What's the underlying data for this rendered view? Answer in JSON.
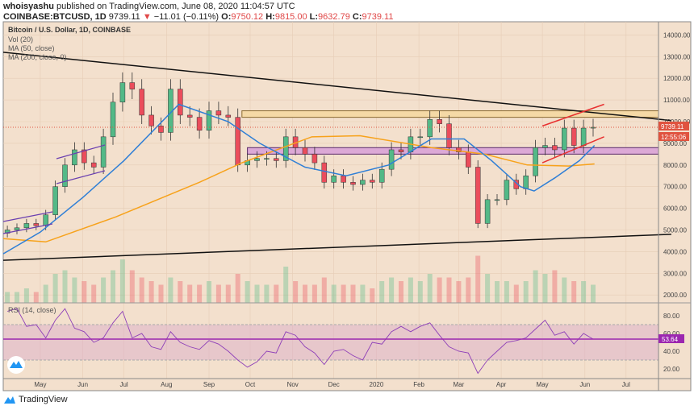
{
  "header": {
    "author": "whoisyashu",
    "published": "published on TradingView.com, June 08, 2020 11:04:57 UTC",
    "symbol": "COINBASE:BTCUSD, 1D",
    "last": "9739.11",
    "change": "−11.01 (−0.11%)",
    "o_label": "O:",
    "o": "9750.12",
    "h_label": "H:",
    "h": "9815.00",
    "l_label": "L:",
    "l": "9632.79",
    "c_label": "C:",
    "c": "9739.11"
  },
  "legend": {
    "title": "Bitcoin / U.S. Dollar, 1D, COINBASE",
    "vol": "Vol (20)",
    "ma50": "MA (50, close)",
    "ma200": "MA (200, close, 0)",
    "rsi": "RSI (14, close)"
  },
  "price_badge": "9739.11",
  "countdown": "12:55:06",
  "rsi_badge": "53.64",
  "footer": {
    "brand": "TradingView"
  },
  "colors": {
    "bg": "#f3e0cd",
    "up": "#53b987",
    "down": "#eb4d5c",
    "ma50": "#2f7fd6",
    "ma200": "#f7a21b",
    "rsi": "#9c27b0",
    "channel": "#e83030"
  },
  "chart_data": {
    "type": "candlestick",
    "title": "Bitcoin / U.S. Dollar, 1D, COINBASE",
    "start_date": "2019-04-07",
    "interval_days": 7,
    "closes": [
      5000,
      5100,
      5300,
      5200,
      5700,
      7000,
      8000,
      8700,
      8100,
      7900,
      9300,
      10900,
      11800,
      11500,
      10300,
      9800,
      9500,
      11500,
      10300,
      10200,
      9600,
      10500,
      10300,
      10200,
      8000,
      8200,
      8300,
      8300,
      8200,
      9300,
      8800,
      8500,
      8100,
      7200,
      7500,
      7200,
      7100,
      7300,
      7200,
      7800,
      8700,
      8600,
      9300,
      9300,
      10100,
      9900,
      8800,
      8600,
      7900,
      5300,
      6400,
      6400,
      7300,
      6900,
      7500,
      8800,
      8900,
      8700,
      9700,
      8900,
      9700,
      9739.11
    ],
    "volume": [
      3,
      3,
      4,
      3,
      5,
      8,
      9,
      7,
      6,
      5,
      7,
      9,
      12,
      9,
      7,
      6,
      5,
      7,
      6,
      5,
      5,
      6,
      5,
      5,
      8,
      6,
      5,
      5,
      5,
      10,
      6,
      5,
      5,
      7,
      5,
      5,
      5,
      5,
      4,
      6,
      7,
      6,
      7,
      6,
      8,
      7,
      7,
      6,
      7,
      13,
      8,
      6,
      6,
      5,
      6,
      9,
      8,
      9,
      7,
      6,
      6,
      5
    ],
    "rsi": [
      85,
      88,
      68,
      70,
      55,
      75,
      88,
      66,
      62,
      50,
      55,
      72,
      85,
      55,
      60,
      45,
      42,
      62,
      50,
      45,
      42,
      52,
      48,
      40,
      30,
      22,
      28,
      40,
      38,
      62,
      58,
      45,
      38,
      25,
      40,
      42,
      35,
      30,
      50,
      48,
      62,
      68,
      62,
      68,
      72,
      58,
      45,
      40,
      38,
      15,
      30,
      40,
      50,
      52,
      55,
      65,
      75,
      58,
      62,
      48,
      60,
      53.64
    ],
    "ma50": [
      [
        "2019-04-04",
        3900
      ],
      [
        "2019-05-01",
        4900
      ],
      [
        "2019-06-01",
        6500
      ],
      [
        "2019-07-01",
        8200
      ],
      [
        "2019-08-10",
        10800
      ],
      [
        "2019-09-15",
        10000
      ],
      [
        "2019-10-08",
        9000
      ],
      [
        "2019-11-10",
        7900
      ],
      [
        "2019-12-10",
        7500
      ],
      [
        "2020-01-10",
        8000
      ],
      [
        "2020-02-10",
        9200
      ],
      [
        "2020-03-05",
        9200
      ],
      [
        "2020-03-25",
        8200
      ],
      [
        "2020-04-15",
        7000
      ],
      [
        "2020-04-25",
        6800
      ],
      [
        "2020-05-10",
        7400
      ],
      [
        "2020-05-28",
        8200
      ],
      [
        "2020-06-08",
        8900
      ]
    ],
    "ma200": [
      [
        "2019-04-04",
        4600
      ],
      [
        "2019-05-05",
        4450
      ],
      [
        "2019-06-25",
        5600
      ],
      [
        "2019-08-25",
        7200
      ],
      [
        "2019-09-25",
        8100
      ],
      [
        "2019-11-15",
        9300
      ],
      [
        "2019-12-20",
        9350
      ],
      [
        "2020-02-10",
        8800
      ],
      [
        "2020-03-20",
        8500
      ],
      [
        "2020-04-20",
        8000
      ],
      [
        "2020-05-20",
        7950
      ],
      [
        "2020-06-08",
        8050
      ]
    ],
    "price_ticks": [
      14000,
      13000,
      12000,
      11000,
      10000,
      9000,
      8000,
      7000,
      6000,
      5000,
      4000,
      3000,
      2000
    ],
    "rsi_ticks": [
      80,
      60,
      40,
      20
    ],
    "months": [
      [
        "May",
        "2019-05-01"
      ],
      [
        "Jun",
        "2019-06-01"
      ],
      [
        "Jul",
        "2019-07-01"
      ],
      [
        "Aug",
        "2019-08-01"
      ],
      [
        "Sep",
        "2019-09-01"
      ],
      [
        "Oct",
        "2019-10-01"
      ],
      [
        "Nov",
        "2019-11-01"
      ],
      [
        "Dec",
        "2019-12-01"
      ],
      [
        "2020",
        "2020-01-01"
      ],
      [
        "Feb",
        "2020-02-01"
      ],
      [
        "Mar",
        "2020-03-01"
      ],
      [
        "Apr",
        "2020-04-01"
      ],
      [
        "May",
        "2020-05-01"
      ],
      [
        "Jun",
        "2020-06-01"
      ],
      [
        "Jul",
        "2020-07-01"
      ]
    ],
    "rsi_band": [
      30,
      70
    ],
    "drawings": {
      "descending_trendline": [
        [
          "2019-04-04",
          13200
        ],
        [
          "2020-08-03",
          10050
        ]
      ],
      "ascending_trendline": [
        [
          "2019-04-04",
          3600
        ],
        [
          "2020-08-03",
          4800
        ]
      ],
      "resistance_zone": [
        10200,
        10500
      ],
      "support_zone": [
        8500,
        8800
      ],
      "red_channel_upper": [
        [
          "2020-05-01",
          9800
        ],
        [
          "2020-06-15",
          10800
        ]
      ],
      "red_channel_lower": [
        [
          "2020-05-01",
          8100
        ],
        [
          "2020-06-15",
          9300
        ]
      ]
    }
  }
}
